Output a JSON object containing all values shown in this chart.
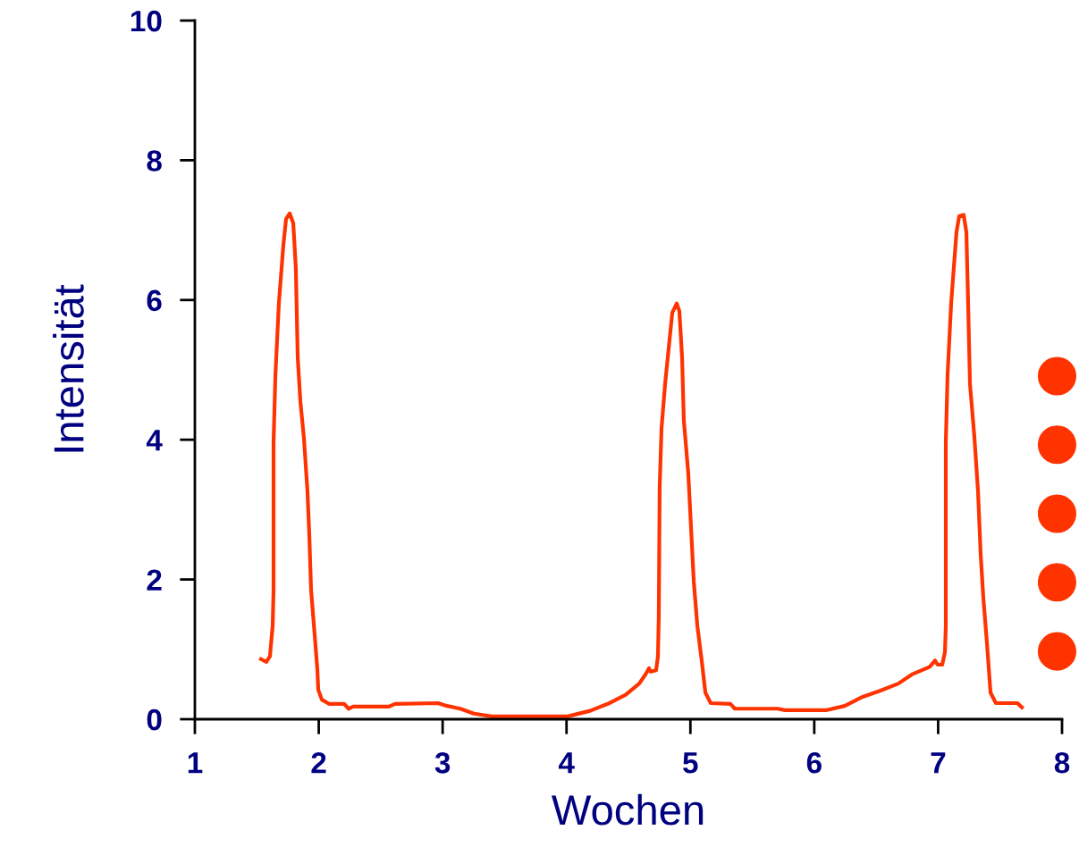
{
  "chart_data": {
    "type": "line",
    "xlabel": "Wochen",
    "ylabel": "Intensität",
    "xlim": [
      1,
      8
    ],
    "ylim": [
      0,
      10
    ],
    "xticks": [
      1,
      2,
      3,
      4,
      5,
      6,
      7,
      8
    ],
    "yticks": [
      0,
      2,
      4,
      6,
      8,
      10
    ],
    "grid": false,
    "legend": false,
    "marker": "none",
    "line_style": "solid",
    "series": [
      {
        "color": "#ff3300",
        "x": [
          1.534,
          1.577,
          1.606,
          1.628,
          1.635,
          1.635,
          1.65,
          1.678,
          1.714,
          1.736,
          1.765,
          1.794,
          1.815,
          1.83,
          1.852,
          1.88,
          1.909,
          1.924,
          1.938,
          1.967,
          1.989,
          1.996,
          2.025,
          2.082,
          2.205,
          2.241,
          2.277,
          2.566,
          2.617,
          2.963,
          3.035,
          3.143,
          3.252,
          3.396,
          4.009,
          4.19,
          4.334,
          4.478,
          4.587,
          4.637,
          4.666,
          4.68,
          4.723,
          4.738,
          4.745,
          4.752,
          4.767,
          4.796,
          4.825,
          4.854,
          4.89,
          4.911,
          4.933,
          4.947,
          4.983,
          5.005,
          5.027,
          5.056,
          5.092,
          5.121,
          5.164,
          5.323,
          5.359,
          5.705,
          5.763,
          6.102,
          6.246,
          6.391,
          6.535,
          6.679,
          6.788,
          6.932,
          6.975,
          6.996,
          7.033,
          7.055,
          7.062,
          7.062,
          7.076,
          7.105,
          7.148,
          7.17,
          7.206,
          7.228,
          7.242,
          7.257,
          7.293,
          7.322,
          7.343,
          7.365,
          7.394,
          7.423,
          7.466,
          7.64,
          7.676
        ],
        "values": [
          0.86,
          0.82,
          0.9,
          1.34,
          1.85,
          3.96,
          4.92,
          5.95,
          6.78,
          7.16,
          7.24,
          7.1,
          6.46,
          5.18,
          4.54,
          4.03,
          3.26,
          2.62,
          1.85,
          1.21,
          0.7,
          0.42,
          0.28,
          0.22,
          0.22,
          0.15,
          0.18,
          0.18,
          0.22,
          0.23,
          0.19,
          0.15,
          0.08,
          0.04,
          0.04,
          0.12,
          0.22,
          0.35,
          0.51,
          0.64,
          0.73,
          0.68,
          0.7,
          0.9,
          1.47,
          3.32,
          4.16,
          4.8,
          5.31,
          5.82,
          5.95,
          5.84,
          5.18,
          4.28,
          3.52,
          2.75,
          1.98,
          1.34,
          0.83,
          0.38,
          0.23,
          0.22,
          0.15,
          0.15,
          0.13,
          0.13,
          0.19,
          0.32,
          0.41,
          0.51,
          0.64,
          0.75,
          0.84,
          0.78,
          0.78,
          0.96,
          1.34,
          3.96,
          4.92,
          5.95,
          6.97,
          7.2,
          7.22,
          6.97,
          5.95,
          4.8,
          4.03,
          3.26,
          2.37,
          1.73,
          1.09,
          0.38,
          0.23,
          0.23,
          0.17
        ]
      },
      {
        "type": "scatter",
        "color": "#ff3300",
        "marker": "circle",
        "x": [
          7.96,
          7.96,
          7.96,
          7.96,
          7.96
        ],
        "values": [
          0.97,
          1.96,
          2.94,
          3.93,
          4.91
        ]
      }
    ]
  }
}
